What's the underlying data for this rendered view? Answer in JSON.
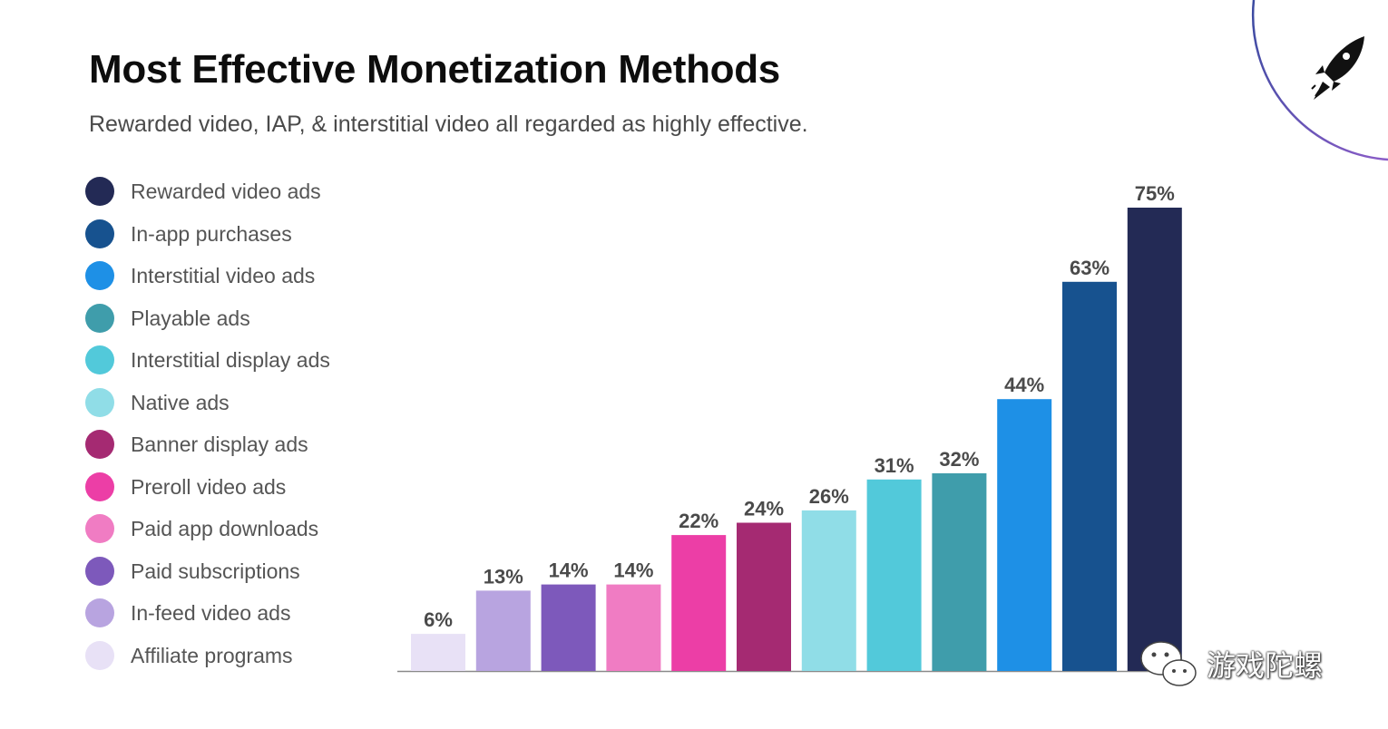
{
  "title": "Most Effective Monetization Methods",
  "subtitle": "Rewarded video, IAP, & interstitial video all regarded as highly effective.",
  "legend": [
    {
      "label": "Rewarded video ads",
      "color": "#232a55"
    },
    {
      "label": "In-app purchases",
      "color": "#17528f"
    },
    {
      "label": "Interstitial video ads",
      "color": "#1e90e6"
    },
    {
      "label": "Playable ads",
      "color": "#3f9dab"
    },
    {
      "label": "Interstitial display ads",
      "color": "#52c9da"
    },
    {
      "label": "Native ads",
      "color": "#90dde7"
    },
    {
      "label": "Banner display ads",
      "color": "#a52a72"
    },
    {
      "label": "Preroll video ads",
      "color": "#ec3ea6"
    },
    {
      "label": "Paid app downloads",
      "color": "#f07cc3"
    },
    {
      "label": "Paid subscriptions",
      "color": "#7d59bb"
    },
    {
      "label": "In-feed video ads",
      "color": "#b8a4e0"
    },
    {
      "label": "Affiliate programs",
      "color": "#e8e1f6"
    }
  ],
  "chart_data": {
    "type": "bar",
    "title": "Most Effective Monetization Methods",
    "xlabel": "",
    "ylabel": "",
    "ylim": [
      0,
      75
    ],
    "categories": [
      "Affiliate programs",
      "In-feed video ads",
      "Paid subscriptions",
      "Paid app downloads",
      "Preroll video ads",
      "Banner display ads",
      "Native ads",
      "Interstitial display ads",
      "Playable ads",
      "Interstitial video ads",
      "In-app purchases",
      "Rewarded video ads"
    ],
    "values": [
      6,
      13,
      14,
      14,
      22,
      24,
      26,
      31,
      32,
      44,
      63,
      75
    ],
    "data_labels": [
      "6%",
      "13%",
      "14%",
      "14%",
      "22%",
      "24%",
      "26%",
      "31%",
      "32%",
      "44%",
      "63%",
      "75%"
    ],
    "colors": [
      "#e8e1f6",
      "#b8a4e0",
      "#7d59bb",
      "#f07cc3",
      "#ec3ea6",
      "#a52a72",
      "#90dde7",
      "#52c9da",
      "#3f9dab",
      "#1e90e6",
      "#17528f",
      "#232a55"
    ],
    "legend_position": "left"
  },
  "watermark": {
    "text": "游戏陀螺",
    "icon": "wechat-icon"
  },
  "corner_logo": {
    "icon": "rocket-icon",
    "colors": [
      "#3a4aa0",
      "#8a5cc7"
    ]
  }
}
